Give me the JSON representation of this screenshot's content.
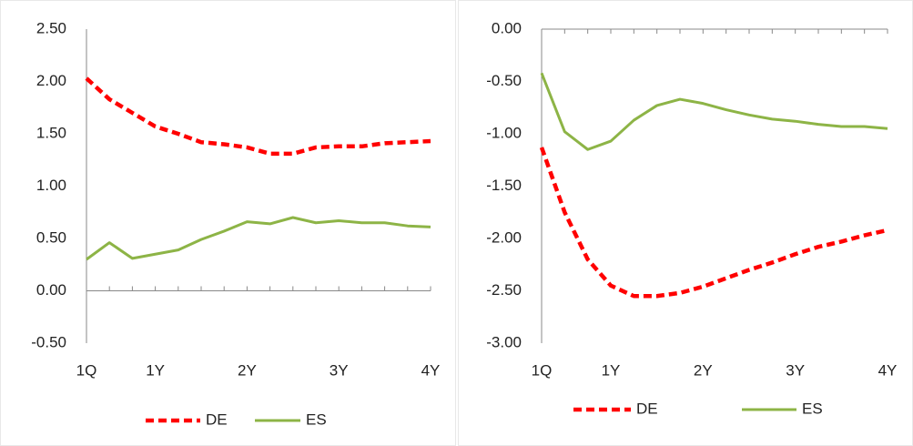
{
  "chart_data": [
    {
      "type": "line",
      "categories": [
        "1Q",
        null,
        null,
        "1Y",
        null,
        null,
        null,
        "2Y",
        null,
        null,
        null,
        "3Y",
        null,
        null,
        null,
        "4Y"
      ],
      "series": [
        {
          "name": "DE",
          "color": "#ff0000",
          "style": "dashed",
          "values": [
            2.03,
            1.83,
            1.7,
            1.57,
            1.5,
            1.42,
            1.4,
            1.37,
            1.31,
            1.31,
            1.37,
            1.38,
            1.38,
            1.41,
            1.42,
            1.43
          ]
        },
        {
          "name": "ES",
          "color": "#8db446",
          "style": "solid",
          "values": [
            0.3,
            0.46,
            0.31,
            0.35,
            0.39,
            0.49,
            0.57,
            0.66,
            0.64,
            0.7,
            0.65,
            0.67,
            0.65,
            0.65,
            0.62,
            0.61
          ]
        }
      ],
      "ylim": [
        -0.5,
        2.5
      ],
      "yticks": [
        {
          "value": 2.5,
          "label": "2.50"
        },
        {
          "value": 2,
          "label": "2.00"
        },
        {
          "value": 1.5,
          "label": "1.50"
        },
        {
          "value": 1,
          "label": "1.00"
        },
        {
          "value": 0.5,
          "label": "0.50"
        },
        {
          "value": 0,
          "label": "0.00"
        },
        {
          "value": -0.5,
          "label": "-0.50"
        }
      ],
      "legend": "bottom"
    },
    {
      "type": "line",
      "categories": [
        "1Q",
        null,
        null,
        "1Y",
        null,
        null,
        null,
        "2Y",
        null,
        null,
        null,
        "3Y",
        null,
        null,
        null,
        "4Y"
      ],
      "series": [
        {
          "name": "DE",
          "color": "#ff0000",
          "style": "dashed",
          "values": [
            -1.13,
            -1.75,
            -2.2,
            -2.45,
            -2.55,
            -2.55,
            -2.52,
            -2.46,
            -2.38,
            -2.3,
            -2.23,
            -2.15,
            -2.08,
            -2.03,
            -1.97,
            -1.92
          ]
        },
        {
          "name": "ES",
          "color": "#8db446",
          "style": "solid",
          "values": [
            -0.42,
            -0.98,
            -1.15,
            -1.07,
            -0.87,
            -0.73,
            -0.67,
            -0.71,
            -0.77,
            -0.82,
            -0.86,
            -0.88,
            -0.91,
            -0.93,
            -0.93,
            -0.95
          ]
        }
      ],
      "ylim": [
        -3,
        0
      ],
      "yticks": [
        {
          "value": 0,
          "label": "0.00"
        },
        {
          "value": -0.5,
          "label": "-0.50"
        },
        {
          "value": -1,
          "label": "-1.00"
        },
        {
          "value": -1.5,
          "label": "-1.50"
        },
        {
          "value": -2,
          "label": "-2.00"
        },
        {
          "value": -2.5,
          "label": "-2.50"
        },
        {
          "value": -3,
          "label": "-3.00"
        }
      ],
      "legend": "bottom"
    }
  ]
}
